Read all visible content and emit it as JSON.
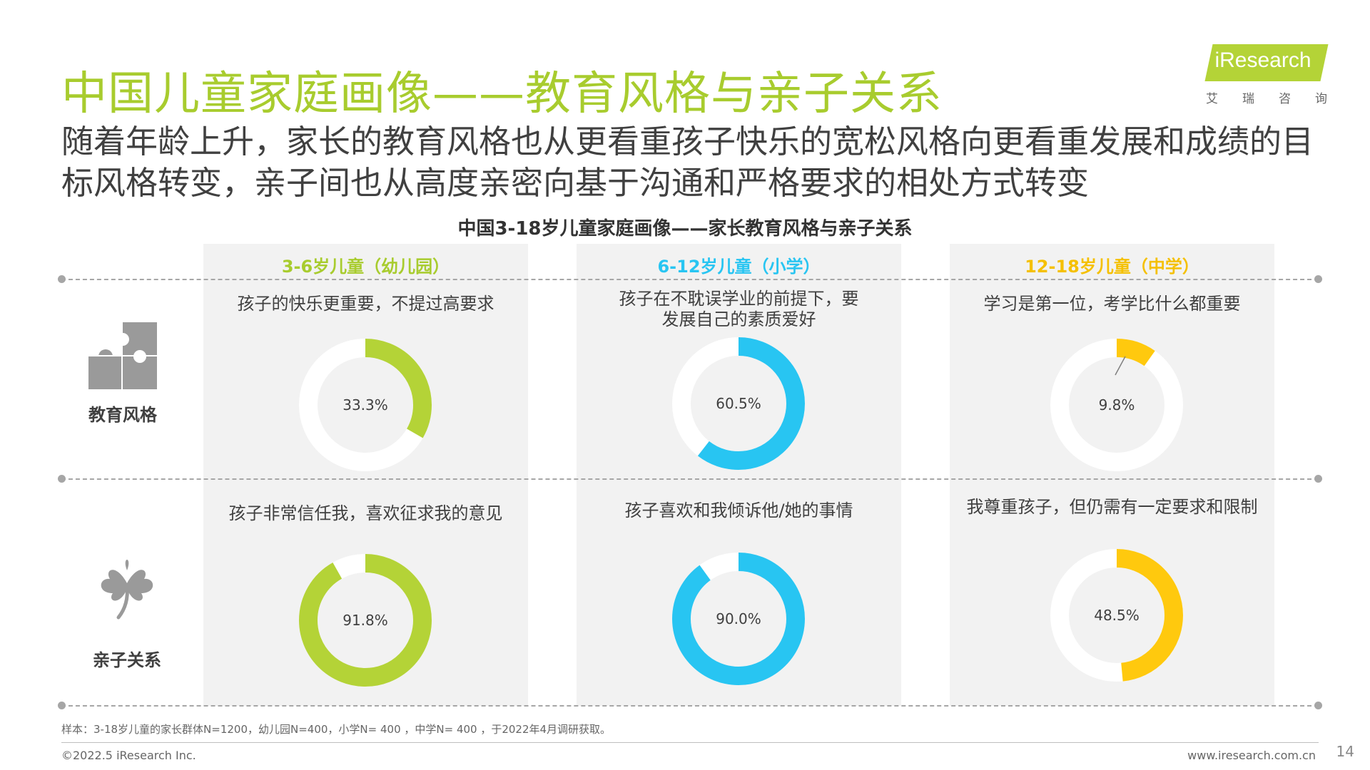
{
  "header": {
    "title": "中国儿童家庭画像——教育风格与亲子关系",
    "subtitle": "随着年龄上升，家长的教育风格也从更看重孩子快乐的宽松风格向更看重发展和成绩的目标风格转变，亲子间也从高度亲密向基于沟通和严格要求的相处方式转变"
  },
  "logo": {
    "text": "iResearch",
    "sub": [
      "艾",
      "瑞",
      "咨",
      "询"
    ]
  },
  "chart_data": {
    "type": "pie",
    "title": "中国3-18岁儿童家庭画像——家长教育风格与亲子关系",
    "columns": [
      {
        "label": "3-6岁儿童（幼儿园）",
        "color": "#b4d337"
      },
      {
        "label": "6-12岁儿童（小学）",
        "color": "#28c5f2"
      },
      {
        "label": "12-18岁儿童（中学）",
        "color": "#ffc90e"
      }
    ],
    "rows": [
      {
        "label": "教育风格",
        "icon": "puzzle-icon",
        "cells": [
          {
            "caption": "孩子的快乐更重要，不提过高要求",
            "value": 33.3,
            "label": "33.3%"
          },
          {
            "caption": "孩子在不耽误学业的前提下，要发展自己的素质爱好",
            "value": 60.5,
            "label": "60.5%"
          },
          {
            "caption": "学习是第一位，考学比什么都重要",
            "value": 9.8,
            "label": "9.8%"
          }
        ]
      },
      {
        "label": "亲子关系",
        "icon": "clover-icon",
        "cells": [
          {
            "caption": "孩子非常信任我，喜欢征求我的意见",
            "value": 91.8,
            "label": "91.8%"
          },
          {
            "caption": "孩子喜欢和我倾诉他/她的事情",
            "value": 90.0,
            "label": "90.0%"
          },
          {
            "caption": "我尊重孩子，但仍需有一定要求和限制",
            "value": 48.5,
            "label": "48.5%"
          }
        ]
      }
    ],
    "remainder_color": "#ffffff"
  },
  "footer": {
    "note": "样本：3-18岁儿童的家长群体N=1200，幼儿园N=400，小学N= 400 ，中学N= 400 ，于2022年4月调研获取。",
    "copyright": "©2022.5 iResearch Inc.",
    "site": "www.iresearch.com.cn",
    "page": "14"
  }
}
